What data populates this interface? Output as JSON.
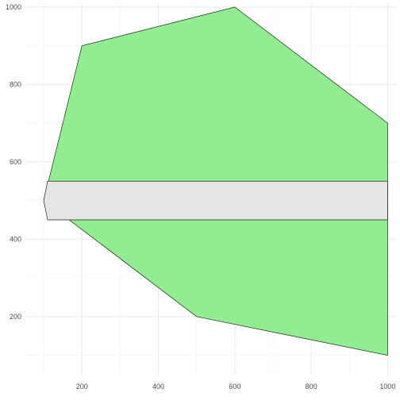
{
  "chart_data": {
    "type": "area",
    "title": "",
    "xlabel": "",
    "ylabel": "",
    "xlim": [
      52,
      1024
    ],
    "ylim": [
      46,
      1010
    ],
    "grid": true,
    "legend": "none",
    "x_ticks": [
      200,
      400,
      600,
      800,
      1000
    ],
    "y_ticks": [
      200,
      400,
      600,
      800,
      1000
    ],
    "x_tick_labels": [
      "200",
      "400",
      "600",
      "800",
      "1000"
    ],
    "y_tick_labels": [
      "200",
      "400",
      "600",
      "800",
      "1000"
    ],
    "polygons": [
      {
        "fill": "#90ee90",
        "points": [
          [
            100,
            500
          ],
          [
            200,
            900
          ],
          [
            600,
            1000
          ],
          [
            1000,
            700
          ],
          [
            1000,
            100
          ],
          [
            500,
            200
          ],
          [
            100,
            500
          ]
        ]
      },
      {
        "fill": "#e5e5e5",
        "points": [
          [
            110,
            550
          ],
          [
            1000,
            550
          ],
          [
            1000,
            450
          ],
          [
            110,
            450
          ],
          [
            100,
            500
          ],
          [
            110,
            550
          ]
        ]
      }
    ]
  }
}
